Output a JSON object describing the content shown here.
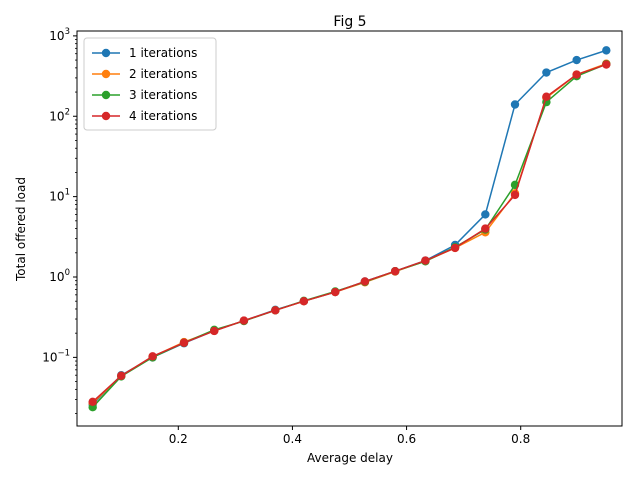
{
  "chart_data": {
    "type": "line",
    "title": "Fig 5",
    "xlabel": "Average delay",
    "ylabel": "Total offered load",
    "xlim": [
      0.0225,
      0.9775
    ],
    "ylim": [
      0.014,
      1150
    ],
    "yscale": "log",
    "grid": false,
    "legend": "top-left",
    "x_ticks": [
      {
        "value": 0.2,
        "label": "0.2"
      },
      {
        "value": 0.4,
        "label": "0.4"
      },
      {
        "value": 0.6,
        "label": "0.6"
      },
      {
        "value": 0.8,
        "label": "0.8"
      }
    ],
    "y_ticks": [
      {
        "value": 0.1,
        "base": "10",
        "exp": "−1"
      },
      {
        "value": 1,
        "base": "10",
        "exp": "0"
      },
      {
        "value": 10,
        "base": "10",
        "exp": "1"
      },
      {
        "value": 100,
        "base": "10",
        "exp": "2"
      },
      {
        "value": 1000,
        "base": "10",
        "exp": "3"
      }
    ],
    "x": [
      0.05,
      0.1,
      0.155,
      0.21,
      0.263,
      0.315,
      0.37,
      0.42,
      0.475,
      0.527,
      0.58,
      0.633,
      0.685,
      0.738,
      0.79,
      0.845,
      0.898,
      0.95
    ],
    "series": [
      {
        "name": "1 iterations",
        "color": "#1f77b4",
        "values": [
          0.026,
          0.06,
          0.1,
          0.15,
          0.215,
          0.285,
          0.39,
          0.5,
          0.65,
          0.88,
          1.18,
          1.6,
          2.5,
          6.0,
          140,
          350,
          500,
          660
        ]
      },
      {
        "name": "2 iterations",
        "color": "#ff7f0e",
        "values": [
          0.027,
          0.059,
          0.102,
          0.155,
          0.215,
          0.285,
          0.385,
          0.5,
          0.65,
          0.86,
          1.17,
          1.58,
          2.3,
          3.6,
          11,
          170,
          330,
          450
        ]
      },
      {
        "name": "3 iterations",
        "color": "#2ca02c",
        "values": [
          0.024,
          0.058,
          0.1,
          0.152,
          0.22,
          0.283,
          0.385,
          0.505,
          0.66,
          0.87,
          1.18,
          1.57,
          2.35,
          3.9,
          14,
          150,
          315,
          445
        ]
      },
      {
        "name": "4 iterations",
        "color": "#d62728",
        "values": [
          0.028,
          0.059,
          0.103,
          0.152,
          0.213,
          0.287,
          0.385,
          0.5,
          0.65,
          0.88,
          1.18,
          1.6,
          2.3,
          4.0,
          10.5,
          175,
          330,
          440
        ]
      }
    ]
  }
}
